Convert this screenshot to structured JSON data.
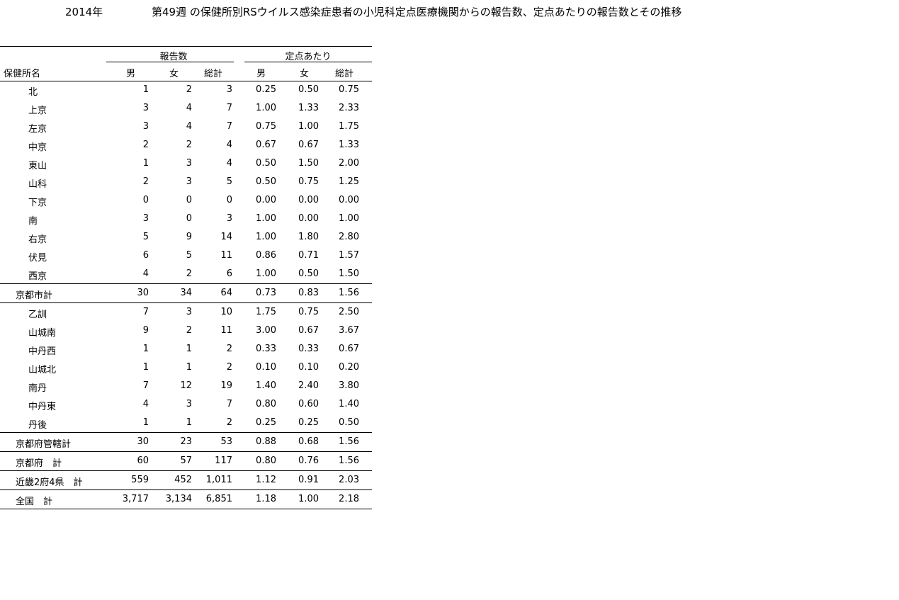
{
  "title": {
    "year": "2014年",
    "text": "第49週 の保健所別RSウイルス感染症患者の小児科定点医療機関からの報告数、定点あたりの報告数とその推移"
  },
  "table": {
    "group_headers": [
      "報告数",
      "定点あたり"
    ],
    "col_headers": [
      "保健所名",
      "男",
      "女",
      "総計",
      "男",
      "女",
      "総計"
    ],
    "rows": [
      {
        "name": "北",
        "v": [
          "1",
          "2",
          "3",
          "0.25",
          "0.50",
          "0.75"
        ]
      },
      {
        "name": "上京",
        "v": [
          "3",
          "4",
          "7",
          "1.00",
          "1.33",
          "2.33"
        ]
      },
      {
        "name": "左京",
        "v": [
          "3",
          "4",
          "7",
          "0.75",
          "1.00",
          "1.75"
        ]
      },
      {
        "name": "中京",
        "v": [
          "2",
          "2",
          "4",
          "0.67",
          "0.67",
          "1.33"
        ]
      },
      {
        "name": "東山",
        "v": [
          "1",
          "3",
          "4",
          "0.50",
          "1.50",
          "2.00"
        ]
      },
      {
        "name": "山科",
        "v": [
          "2",
          "3",
          "5",
          "0.50",
          "0.75",
          "1.25"
        ]
      },
      {
        "name": "下京",
        "v": [
          "0",
          "0",
          "0",
          "0.00",
          "0.00",
          "0.00"
        ]
      },
      {
        "name": "南",
        "v": [
          "3",
          "0",
          "3",
          "1.00",
          "0.00",
          "1.00"
        ]
      },
      {
        "name": "右京",
        "v": [
          "5",
          "9",
          "14",
          "1.00",
          "1.80",
          "2.80"
        ]
      },
      {
        "name": "伏見",
        "v": [
          "6",
          "5",
          "11",
          "0.86",
          "0.71",
          "1.57"
        ]
      },
      {
        "name": "西京",
        "v": [
          "4",
          "2",
          "6",
          "1.00",
          "0.50",
          "1.50"
        ]
      },
      {
        "name": "京都市計",
        "v": [
          "30",
          "34",
          "64",
          "0.73",
          "0.83",
          "1.56"
        ],
        "sub": true
      },
      {
        "name": "乙訓",
        "v": [
          "7",
          "3",
          "10",
          "1.75",
          "0.75",
          "2.50"
        ]
      },
      {
        "name": "山城南",
        "v": [
          "9",
          "2",
          "11",
          "3.00",
          "0.67",
          "3.67"
        ]
      },
      {
        "name": "中丹西",
        "v": [
          "1",
          "1",
          "2",
          "0.33",
          "0.33",
          "0.67"
        ]
      },
      {
        "name": "山城北",
        "v": [
          "1",
          "1",
          "2",
          "0.10",
          "0.10",
          "0.20"
        ]
      },
      {
        "name": "南丹",
        "v": [
          "7",
          "12",
          "19",
          "1.40",
          "2.40",
          "3.80"
        ]
      },
      {
        "name": "中丹東",
        "v": [
          "4",
          "3",
          "7",
          "0.80",
          "0.60",
          "1.40"
        ]
      },
      {
        "name": "丹後",
        "v": [
          "1",
          "1",
          "2",
          "0.25",
          "0.25",
          "0.50"
        ]
      },
      {
        "name": "京都府管轄計",
        "v": [
          "30",
          "23",
          "53",
          "0.88",
          "0.68",
          "1.56"
        ],
        "sub": true
      },
      {
        "name": "京都府　計",
        "v": [
          "60",
          "57",
          "117",
          "0.80",
          "0.76",
          "1.56"
        ],
        "sub": true
      },
      {
        "name": "近畿2府4県　計",
        "v": [
          "559",
          "452",
          "1,011",
          "1.12",
          "0.91",
          "2.03"
        ],
        "sub": true
      },
      {
        "name": "全国　計",
        "v": [
          "3,717",
          "3,134",
          "6,851",
          "1.18",
          "1.00",
          "2.18"
        ],
        "sub": true
      }
    ]
  }
}
